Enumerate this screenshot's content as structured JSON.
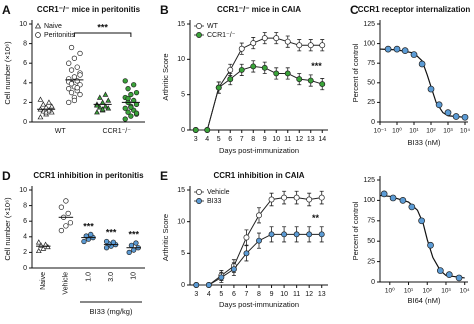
{
  "chart_data": [
    {
      "type": "dot",
      "panel": "A",
      "title": "CCR1⁻/⁻ mice in peritonitis",
      "ylabel": "Cell number (×10⁶)",
      "categories": [
        "WT",
        "CCR1⁻/⁻"
      ],
      "category_colors": [
        "#ffffff",
        "#3aa339"
      ],
      "series": [
        {
          "name": "Naive",
          "marker": "triangle",
          "values": [
            [
              0.5,
              0.8,
              1.0,
              1.1,
              1.2,
              1.3,
              1.5,
              1.6,
              1.8,
              2.0,
              2.3,
              1.0
            ],
            [
              1.0,
              1.2,
              1.4,
              1.5,
              1.6,
              1.8,
              2.0,
              2.2,
              2.5,
              2.8,
              1.7,
              1.3
            ]
          ],
          "means": [
            1.3,
            1.8
          ]
        },
        {
          "name": "Peritonitis",
          "marker": "circle",
          "values": [
            [
              2.0,
              2.5,
              2.8,
              3.0,
              3.2,
              3.4,
              3.6,
              3.8,
              4.0,
              4.2,
              4.4,
              4.6,
              5.0,
              5.3,
              5.6,
              6.0,
              6.5,
              7.0,
              7.6,
              3.5,
              4.1,
              2.2,
              4.8,
              3.9
            ],
            [
              0.3,
              0.6,
              0.8,
              1.0,
              1.2,
              1.4,
              1.6,
              1.8,
              2.0,
              2.2,
              2.5,
              2.8,
              3.0,
              3.4,
              3.8,
              4.2,
              1.5,
              0.9,
              2.4
            ]
          ],
          "means": [
            4.3,
            2.0
          ]
        }
      ],
      "ylim": [
        0,
        10
      ],
      "yticks": [
        0,
        2,
        4,
        6,
        8,
        10
      ],
      "annotations": [
        "***"
      ]
    },
    {
      "type": "line",
      "panel": "B",
      "title": "CCR1⁻/⁻ mice in CAIA",
      "xlabel": "Days post-immunization",
      "ylabel": "Arthritic Score",
      "x": [
        3,
        4,
        5,
        6,
        7,
        8,
        9,
        10,
        11,
        12,
        13,
        14
      ],
      "series": [
        {
          "name": "WT",
          "color": "#ffffff",
          "values": [
            0,
            0,
            6,
            8.5,
            11.5,
            12.3,
            13,
            13,
            12.5,
            12,
            12,
            12
          ],
          "errors": [
            0.2,
            0.2,
            0.8,
            0.8,
            0.8,
            0.8,
            0.8,
            0.8,
            0.8,
            0.8,
            0.8,
            0.8
          ]
        },
        {
          "name": "CCR1⁻/⁻",
          "color": "#3aa339",
          "values": [
            0,
            0,
            6,
            7.2,
            8.5,
            9,
            8.8,
            8,
            8,
            7.2,
            7,
            6.5
          ],
          "errors": [
            0.2,
            0.2,
            0.8,
            0.8,
            0.8,
            0.8,
            0.8,
            0.8,
            0.8,
            0.8,
            0.8,
            0.8
          ]
        }
      ],
      "xlim": [
        2.5,
        14.5
      ],
      "xticks": [
        3,
        4,
        5,
        6,
        7,
        8,
        9,
        10,
        11,
        12,
        13,
        14
      ],
      "ylim": [
        0,
        15
      ],
      "yticks": [
        0,
        5,
        10,
        15
      ],
      "annotations": [
        "***"
      ]
    },
    {
      "type": "dose",
      "panel": "C",
      "title": "CCR1 receptor internalization",
      "xlabel": "BI33 (nM)",
      "ylabel": "Percent of control",
      "log_x": true,
      "color": "#5b9bd5",
      "x": [
        0.3,
        1,
        3,
        10,
        30,
        100,
        300,
        1000,
        3000,
        10000
      ],
      "values": [
        93,
        93,
        91,
        86,
        74,
        42,
        22,
        12,
        7,
        6
      ],
      "fit_x": [
        0.1,
        1,
        10,
        30,
        60,
        100,
        200,
        500,
        1000,
        10000
      ],
      "fit_y": [
        93,
        92,
        88,
        78,
        60,
        45,
        25,
        12,
        8,
        6
      ],
      "xlim": [
        0.1,
        15000
      ],
      "xticks": [
        {
          "value": 0.1,
          "label": "10⁻¹"
        },
        {
          "value": 1,
          "label": "10⁰"
        },
        {
          "value": 10,
          "label": "10¹"
        },
        {
          "value": 100,
          "label": "10²"
        },
        {
          "value": 1000,
          "label": "10³"
        },
        {
          "value": 10000,
          "label": "10⁴"
        }
      ],
      "ylim": [
        0,
        125
      ],
      "yticks": [
        0,
        25,
        50,
        75,
        100,
        125
      ]
    },
    {
      "type": "dose",
      "xlabel": "BI64 (nM)",
      "ylabel": "Percent of control",
      "log_x": true,
      "color": "#5b9bd5",
      "x": [
        0.5,
        1.5,
        5,
        15,
        50,
        150,
        500,
        1500,
        5000
      ],
      "values": [
        108,
        103,
        100,
        92,
        75,
        45,
        14,
        9,
        5
      ],
      "fit_x": [
        0.3,
        1,
        10,
        30,
        60,
        100,
        200,
        500,
        1000,
        10000
      ],
      "fit_y": [
        106,
        105,
        98,
        88,
        72,
        52,
        30,
        14,
        8,
        5
      ],
      "xlim": [
        0.3,
        15000
      ],
      "xticks": [
        {
          "value": 1,
          "label": "10⁰"
        },
        {
          "value": 10,
          "label": "10¹"
        },
        {
          "value": 100,
          "label": "10²"
        },
        {
          "value": 1000,
          "label": "10³"
        },
        {
          "value": 10000,
          "label": "10⁴"
        }
      ],
      "ylim": [
        0,
        125
      ],
      "yticks": [
        0,
        25,
        50,
        75,
        100,
        125
      ]
    },
    {
      "type": "dot",
      "panel": "D",
      "title": "CCR1 inhibition in peritonitis",
      "xlabel": "BI33 (mg/kg)",
      "ylabel": "Cell number (×10⁶)",
      "categories": [
        "Naive",
        "Vehicle",
        "1.0",
        "3.0",
        "10"
      ],
      "markers": [
        "triangle",
        "circle",
        "circle",
        "circle",
        "circle"
      ],
      "colors": [
        "#ffffff",
        "#ffffff",
        "#5b9bd5",
        "#5b9bd5",
        "#5b9bd5"
      ],
      "values": [
        [
          2.2,
          2.5,
          2.7,
          2.9,
          3.0,
          3.3
        ],
        [
          4.8,
          5.4,
          5.8,
          6.5,
          7.0,
          7.8,
          8.6
        ],
        [
          3.4,
          3.7,
          3.9,
          4.1,
          4.3
        ],
        [
          2.6,
          2.8,
          3.0,
          3.1,
          3.3,
          3.4
        ],
        [
          2.0,
          2.3,
          2.6,
          2.9,
          3.2
        ]
      ],
      "means": [
        2.8,
        6.5,
        3.9,
        3.0,
        2.6
      ],
      "ylim": [
        0,
        10
      ],
      "yticks": [
        0,
        2,
        4,
        6,
        8,
        10
      ],
      "annotations": [
        "***",
        "***",
        "***"
      ]
    },
    {
      "type": "line",
      "panel": "E",
      "title": "CCR1 inhibition in CAIA",
      "xlabel": "Days post-immunization",
      "ylabel": "Arthritic Score",
      "x": [
        3,
        4,
        5,
        6,
        7,
        8,
        9,
        10,
        11,
        12,
        13
      ],
      "series": [
        {
          "name": "Vehicle",
          "color": "#ffffff",
          "values": [
            0,
            0,
            1.5,
            3,
            7.5,
            11,
            13.5,
            13.8,
            13.8,
            13.5,
            13.8
          ],
          "errors": [
            0.2,
            0.2,
            0.8,
            1,
            1.2,
            1.2,
            1,
            1,
            1,
            1,
            1
          ]
        },
        {
          "name": "BI33",
          "color": "#5b9bd5",
          "values": [
            0,
            0,
            1.2,
            2.5,
            5,
            7,
            8,
            8,
            8,
            8,
            8
          ],
          "errors": [
            0.2,
            0.2,
            0.8,
            1,
            1.2,
            1.2,
            1.2,
            1.2,
            1.2,
            1.2,
            1.2
          ]
        }
      ],
      "xlim": [
        2.5,
        13.5
      ],
      "xticks": [
        3,
        4,
        5,
        6,
        7,
        8,
        9,
        10,
        11,
        12,
        13
      ],
      "ylim": [
        0,
        15
      ],
      "yticks": [
        0,
        5,
        10,
        15
      ],
      "annotations": [
        "**"
      ]
    }
  ]
}
